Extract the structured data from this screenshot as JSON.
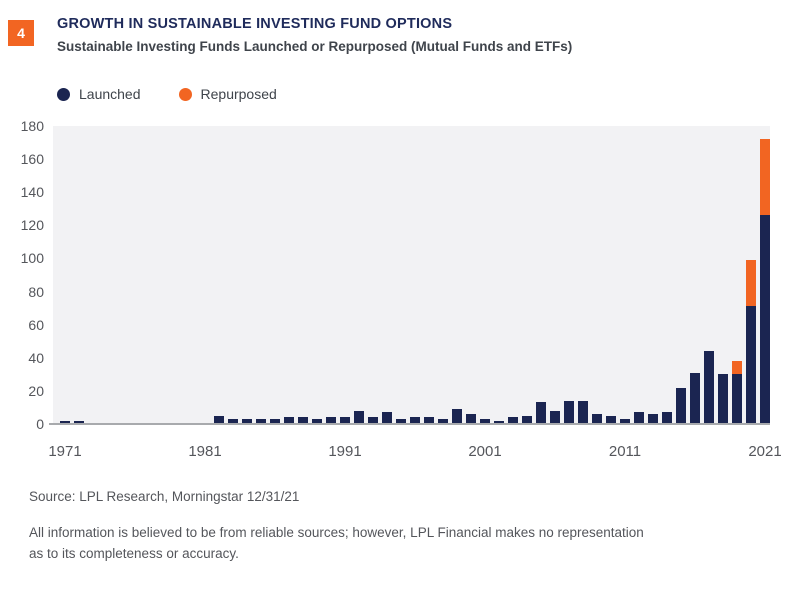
{
  "page": {
    "figure_number": "4",
    "title": "GROWTH IN SUSTAINABLE INVESTING FUND OPTIONS",
    "subtitle": "Sustainable Investing Funds Launched or Repurposed (Mutual Funds and ETFs)",
    "source_line": "Source: LPL Research, Morningstar 12/31/21",
    "disclaimer_line1": "All information is believed to be from reliable sources; however, LPL Financial makes no representation",
    "disclaimer_line2": "as to its completeness or accuracy."
  },
  "legend": {
    "items": [
      {
        "label": "Launched",
        "color": "#1B2551"
      },
      {
        "label": "Repurposed",
        "color": "#F26522"
      }
    ],
    "position": "top-left"
  },
  "colors": {
    "launched_navy": "#1B2551",
    "repurposed_orange": "#F26522",
    "badge_orange": "#F26522",
    "title_navy": "#1F2B5B",
    "body_text_gray": "#3F444B",
    "axis_text_gray": "#54565B",
    "plot_background": "#F2F2F4",
    "axis_line_gray": "#A8AAAD",
    "page_background": "#FFFFFF"
  },
  "chart_data": {
    "type": "bar",
    "stacked": true,
    "title": "Sustainable Investing Funds Launched or Repurposed (Mutual Funds and ETFs)",
    "xlabel": "",
    "ylabel": "",
    "ylim": [
      0,
      180
    ],
    "y_ticks": [
      0,
      20,
      40,
      60,
      80,
      100,
      120,
      140,
      160,
      180
    ],
    "x_ticks": [
      1971,
      1981,
      1991,
      2001,
      2011,
      2021
    ],
    "grid": false,
    "legend_position": "top-left",
    "x": [
      1971,
      1972,
      1973,
      1974,
      1975,
      1976,
      1977,
      1978,
      1979,
      1980,
      1981,
      1982,
      1983,
      1984,
      1985,
      1986,
      1987,
      1988,
      1989,
      1990,
      1991,
      1992,
      1993,
      1994,
      1995,
      1996,
      1997,
      1998,
      1999,
      2000,
      2001,
      2002,
      2003,
      2004,
      2005,
      2006,
      2007,
      2008,
      2009,
      2010,
      2011,
      2012,
      2013,
      2014,
      2015,
      2016,
      2017,
      2018,
      2019,
      2020,
      2021
    ],
    "series": [
      {
        "name": "Launched",
        "color": "#1B2551",
        "values": [
          2,
          2,
          0,
          0,
          0,
          0,
          0,
          0,
          0,
          0,
          0,
          5,
          3,
          3,
          3,
          3,
          4,
          4,
          3,
          4,
          4,
          8,
          4,
          7,
          3,
          4,
          4,
          3,
          9,
          6,
          3,
          2,
          4,
          5,
          13,
          8,
          14,
          14,
          6,
          5,
          3,
          7,
          6,
          7,
          22,
          31,
          44,
          30,
          30,
          71,
          126
        ]
      },
      {
        "name": "Repurposed",
        "color": "#F26522",
        "values": [
          0,
          0,
          0,
          0,
          0,
          0,
          0,
          0,
          0,
          0,
          0,
          0,
          0,
          0,
          0,
          0,
          0,
          0,
          0,
          0,
          0,
          0,
          0,
          0,
          0,
          0,
          0,
          0,
          0,
          0,
          0,
          0,
          0,
          0,
          0,
          0,
          0,
          0,
          0,
          0,
          0,
          0,
          0,
          0,
          0,
          0,
          0,
          0,
          8,
          28,
          46
        ]
      }
    ]
  }
}
